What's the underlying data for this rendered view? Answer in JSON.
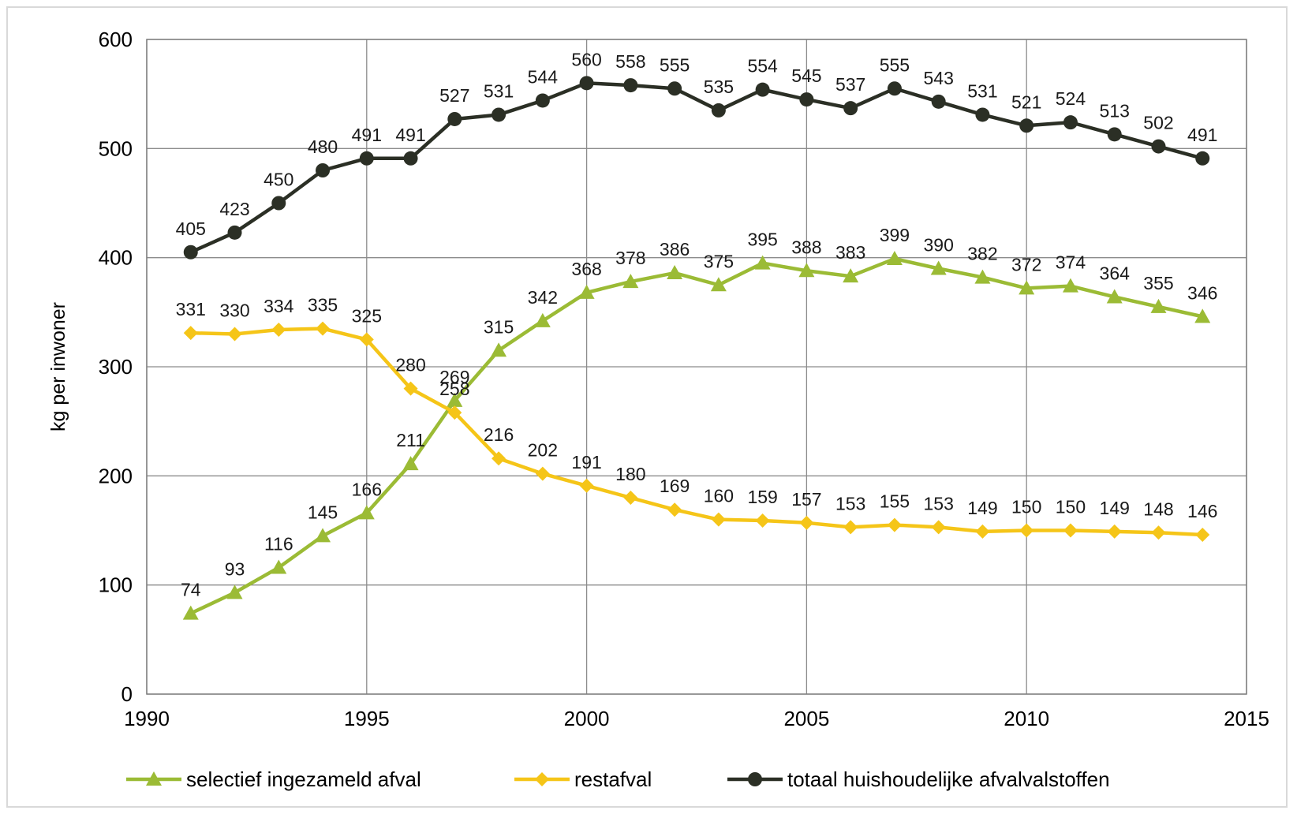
{
  "chart_data": {
    "type": "line",
    "title": "",
    "xlabel": "",
    "ylabel": "kg per inwoner",
    "xlim": [
      1990,
      2015
    ],
    "ylim": [
      0,
      600
    ],
    "x_ticks": [
      "1990",
      "1995",
      "2000",
      "2005",
      "2010",
      "2015"
    ],
    "y_ticks": [
      "0",
      "100",
      "200",
      "300",
      "400",
      "500",
      "600"
    ],
    "grid": true,
    "legend_position": "bottom",
    "x": [
      1991,
      1992,
      1993,
      1994,
      1995,
      1996,
      1997,
      1998,
      1999,
      2000,
      2001,
      2002,
      2003,
      2004,
      2005,
      2006,
      2007,
      2008,
      2009,
      2010,
      2011,
      2012,
      2013,
      2014
    ],
    "series": [
      {
        "name": "selectief ingezameld afval",
        "color": "#9bbb35",
        "marker": "triangle",
        "values": [
          74,
          93,
          116,
          145,
          166,
          211,
          269,
          315,
          342,
          368,
          378,
          386,
          375,
          395,
          388,
          383,
          399,
          390,
          382,
          372,
          374,
          364,
          355,
          346
        ]
      },
      {
        "name": "restafval",
        "color": "#f5c518",
        "marker": "diamond",
        "values": [
          331,
          330,
          334,
          335,
          325,
          280,
          258,
          216,
          202,
          191,
          180,
          169,
          160,
          159,
          157,
          153,
          155,
          153,
          149,
          150,
          150,
          149,
          148,
          146
        ]
      },
      {
        "name": "totaal huishoudelijke afvalvalstoffen",
        "color": "#2b2f25",
        "marker": "circle",
        "values": [
          405,
          423,
          450,
          480,
          491,
          491,
          527,
          531,
          544,
          560,
          558,
          555,
          535,
          554,
          545,
          537,
          555,
          543,
          531,
          521,
          524,
          513,
          502,
          491
        ]
      }
    ]
  }
}
